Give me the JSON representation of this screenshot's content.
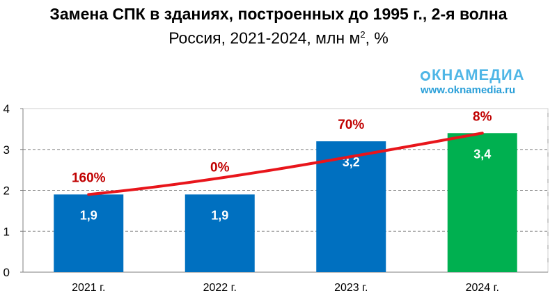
{
  "title": "Замена СПК в зданиях, построенных до 1995 г., 2-я волна",
  "subtitle_main": "Россия, 2021-2024, млн м",
  "subtitle_sup": "2",
  "subtitle_tail": ", %",
  "brand": {
    "logo_text": "КНАМЕДИА",
    "url": "www.oknamedia.ru"
  },
  "colors": {
    "bar": "#0070c0",
    "bar_highlight": "#00b050",
    "trend": "#e8151b",
    "growth_label": "#c00000"
  },
  "chart_data": {
    "type": "bar",
    "categories": [
      "2021 г.",
      "2022 г.",
      "2023 г.",
      "2024 г."
    ],
    "values": [
      1.9,
      1.9,
      3.2,
      3.4
    ],
    "value_labels": [
      "1,9",
      "1,9",
      "3,2",
      "3,4"
    ],
    "growth_labels": [
      "160%",
      "0%",
      "70%",
      "8%"
    ],
    "highlight_index": 3,
    "trend_line": true,
    "ylim": [
      0,
      4
    ],
    "yticks": [
      0,
      1,
      2,
      3,
      4
    ],
    "grid": true,
    "title": "Замена СПК в зданиях, построенных до 1995 г., 2-я волна",
    "xlabel": "",
    "ylabel": ""
  }
}
